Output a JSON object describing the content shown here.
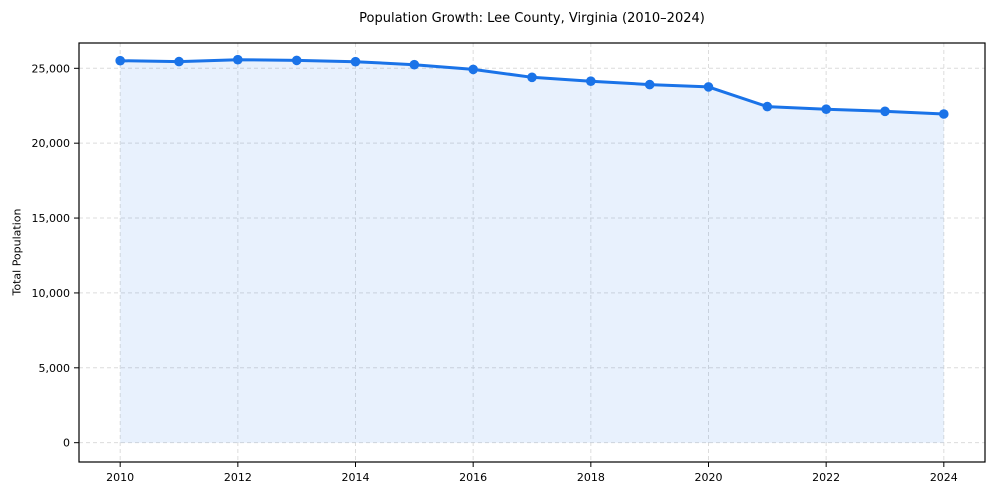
{
  "chart_data": {
    "type": "area",
    "title": "Population Growth: Lee County, Virginia (2010–2024)",
    "xlabel": "",
    "ylabel": "Total Population",
    "x": [
      2010,
      2011,
      2012,
      2013,
      2014,
      2015,
      2016,
      2017,
      2018,
      2019,
      2020,
      2021,
      2022,
      2023,
      2024
    ],
    "values": [
      25510,
      25445,
      25575,
      25530,
      25440,
      25240,
      24930,
      24400,
      24140,
      23910,
      23760,
      22445,
      22270,
      22130,
      21950
    ],
    "series_name": "Total Population",
    "xticks": [
      2010,
      2012,
      2014,
      2016,
      2018,
      2020,
      2022,
      2024
    ],
    "xtick_labels": [
      "2010",
      "2012",
      "2014",
      "2016",
      "2018",
      "2020",
      "2022",
      "2024"
    ],
    "yticks": [
      0,
      5000,
      10000,
      15000,
      20000,
      25000
    ],
    "ytick_labels": [
      "0",
      "5,000",
      "10,000",
      "15,000",
      "20,000",
      "25,000"
    ],
    "xlim": [
      2009.3,
      2024.7
    ],
    "ylim": [
      -1290,
      26690
    ],
    "grid": true,
    "legend": false,
    "baseline": 0,
    "line_color": "#1a73e8",
    "fill_color": "rgba(26,115,232,0.10)",
    "grid_color": "#dcdcdc",
    "spine_color": "#000000",
    "text_color": "#000000"
  }
}
